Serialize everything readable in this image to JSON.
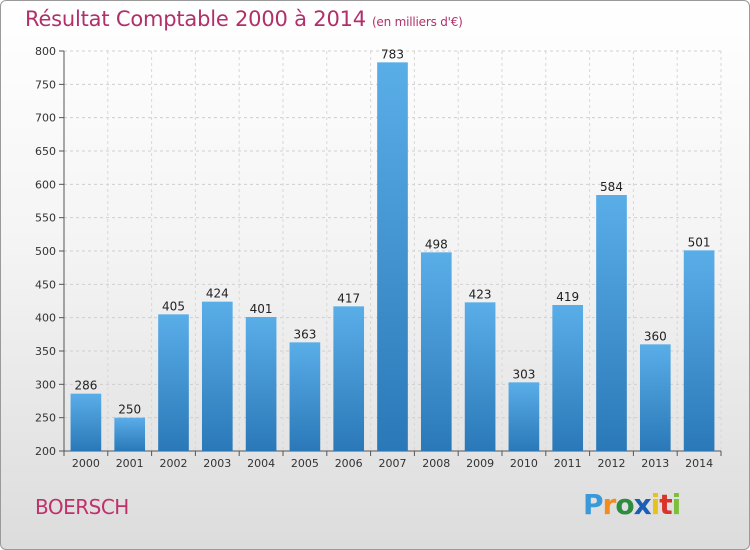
{
  "header": {
    "title": "Résultat Comptable 2000 à 2014",
    "subtitle": "(en milliers d'€)"
  },
  "footer": {
    "commune": "BOERSCH",
    "logo": {
      "letters": [
        "P",
        "r",
        "o",
        "x",
        "i",
        "t",
        "i"
      ],
      "colors": [
        "#3a9ad9",
        "#f28c1e",
        "#2e8b3f",
        "#1a5fb4",
        "#e8c21a",
        "#d9342b",
        "#7bbf3a"
      ]
    }
  },
  "chart_data": {
    "type": "bar",
    "title": "Résultat Comptable 2000 à 2014",
    "subtitle": "(en milliers d'€)",
    "xlabel": "",
    "ylabel": "",
    "categories": [
      "2000",
      "2001",
      "2002",
      "2003",
      "2004",
      "2005",
      "2006",
      "2007",
      "2008",
      "2009",
      "2010",
      "2011",
      "2012",
      "2013",
      "2014"
    ],
    "values": [
      286,
      250,
      405,
      424,
      401,
      363,
      417,
      783,
      498,
      423,
      303,
      419,
      584,
      360,
      501
    ],
    "ylim": [
      200,
      800
    ],
    "yticks": [
      200,
      250,
      300,
      350,
      400,
      450,
      500,
      550,
      600,
      650,
      700,
      750,
      800
    ],
    "grid": true,
    "bar_color_top": "#5aaee8",
    "bar_color_bottom": "#2a78b8"
  }
}
